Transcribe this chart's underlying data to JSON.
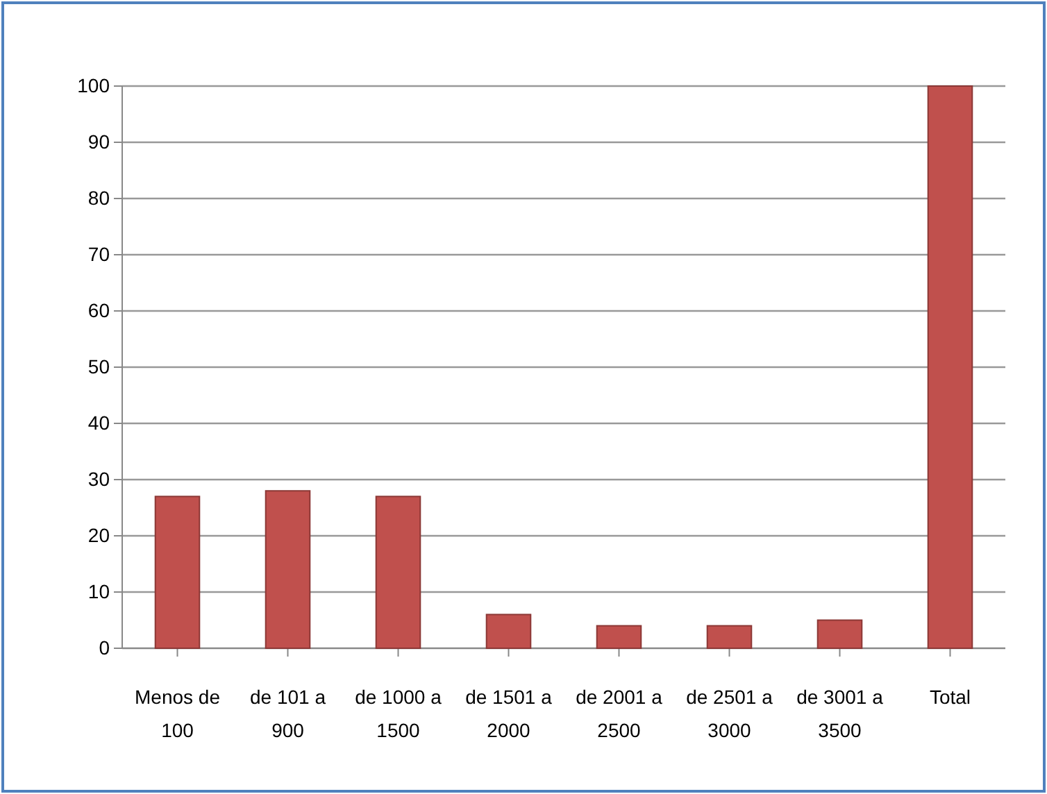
{
  "chart_data": {
    "type": "bar",
    "categories": [
      "Menos de 100",
      "de 101 a 900",
      "de 1000 a 1500",
      "de 1501 a 2000",
      "de 2001 a 2500",
      "de 2501 a 3000",
      "de 3001 a 3500",
      "Total"
    ],
    "values": [
      27,
      28,
      27,
      6,
      4,
      4,
      5,
      100
    ],
    "color": "#c0504d",
    "ylim": [
      0,
      100
    ],
    "yticks": [
      0,
      10,
      20,
      30,
      40,
      50,
      60,
      70,
      80,
      90,
      100
    ],
    "grid": "y"
  }
}
